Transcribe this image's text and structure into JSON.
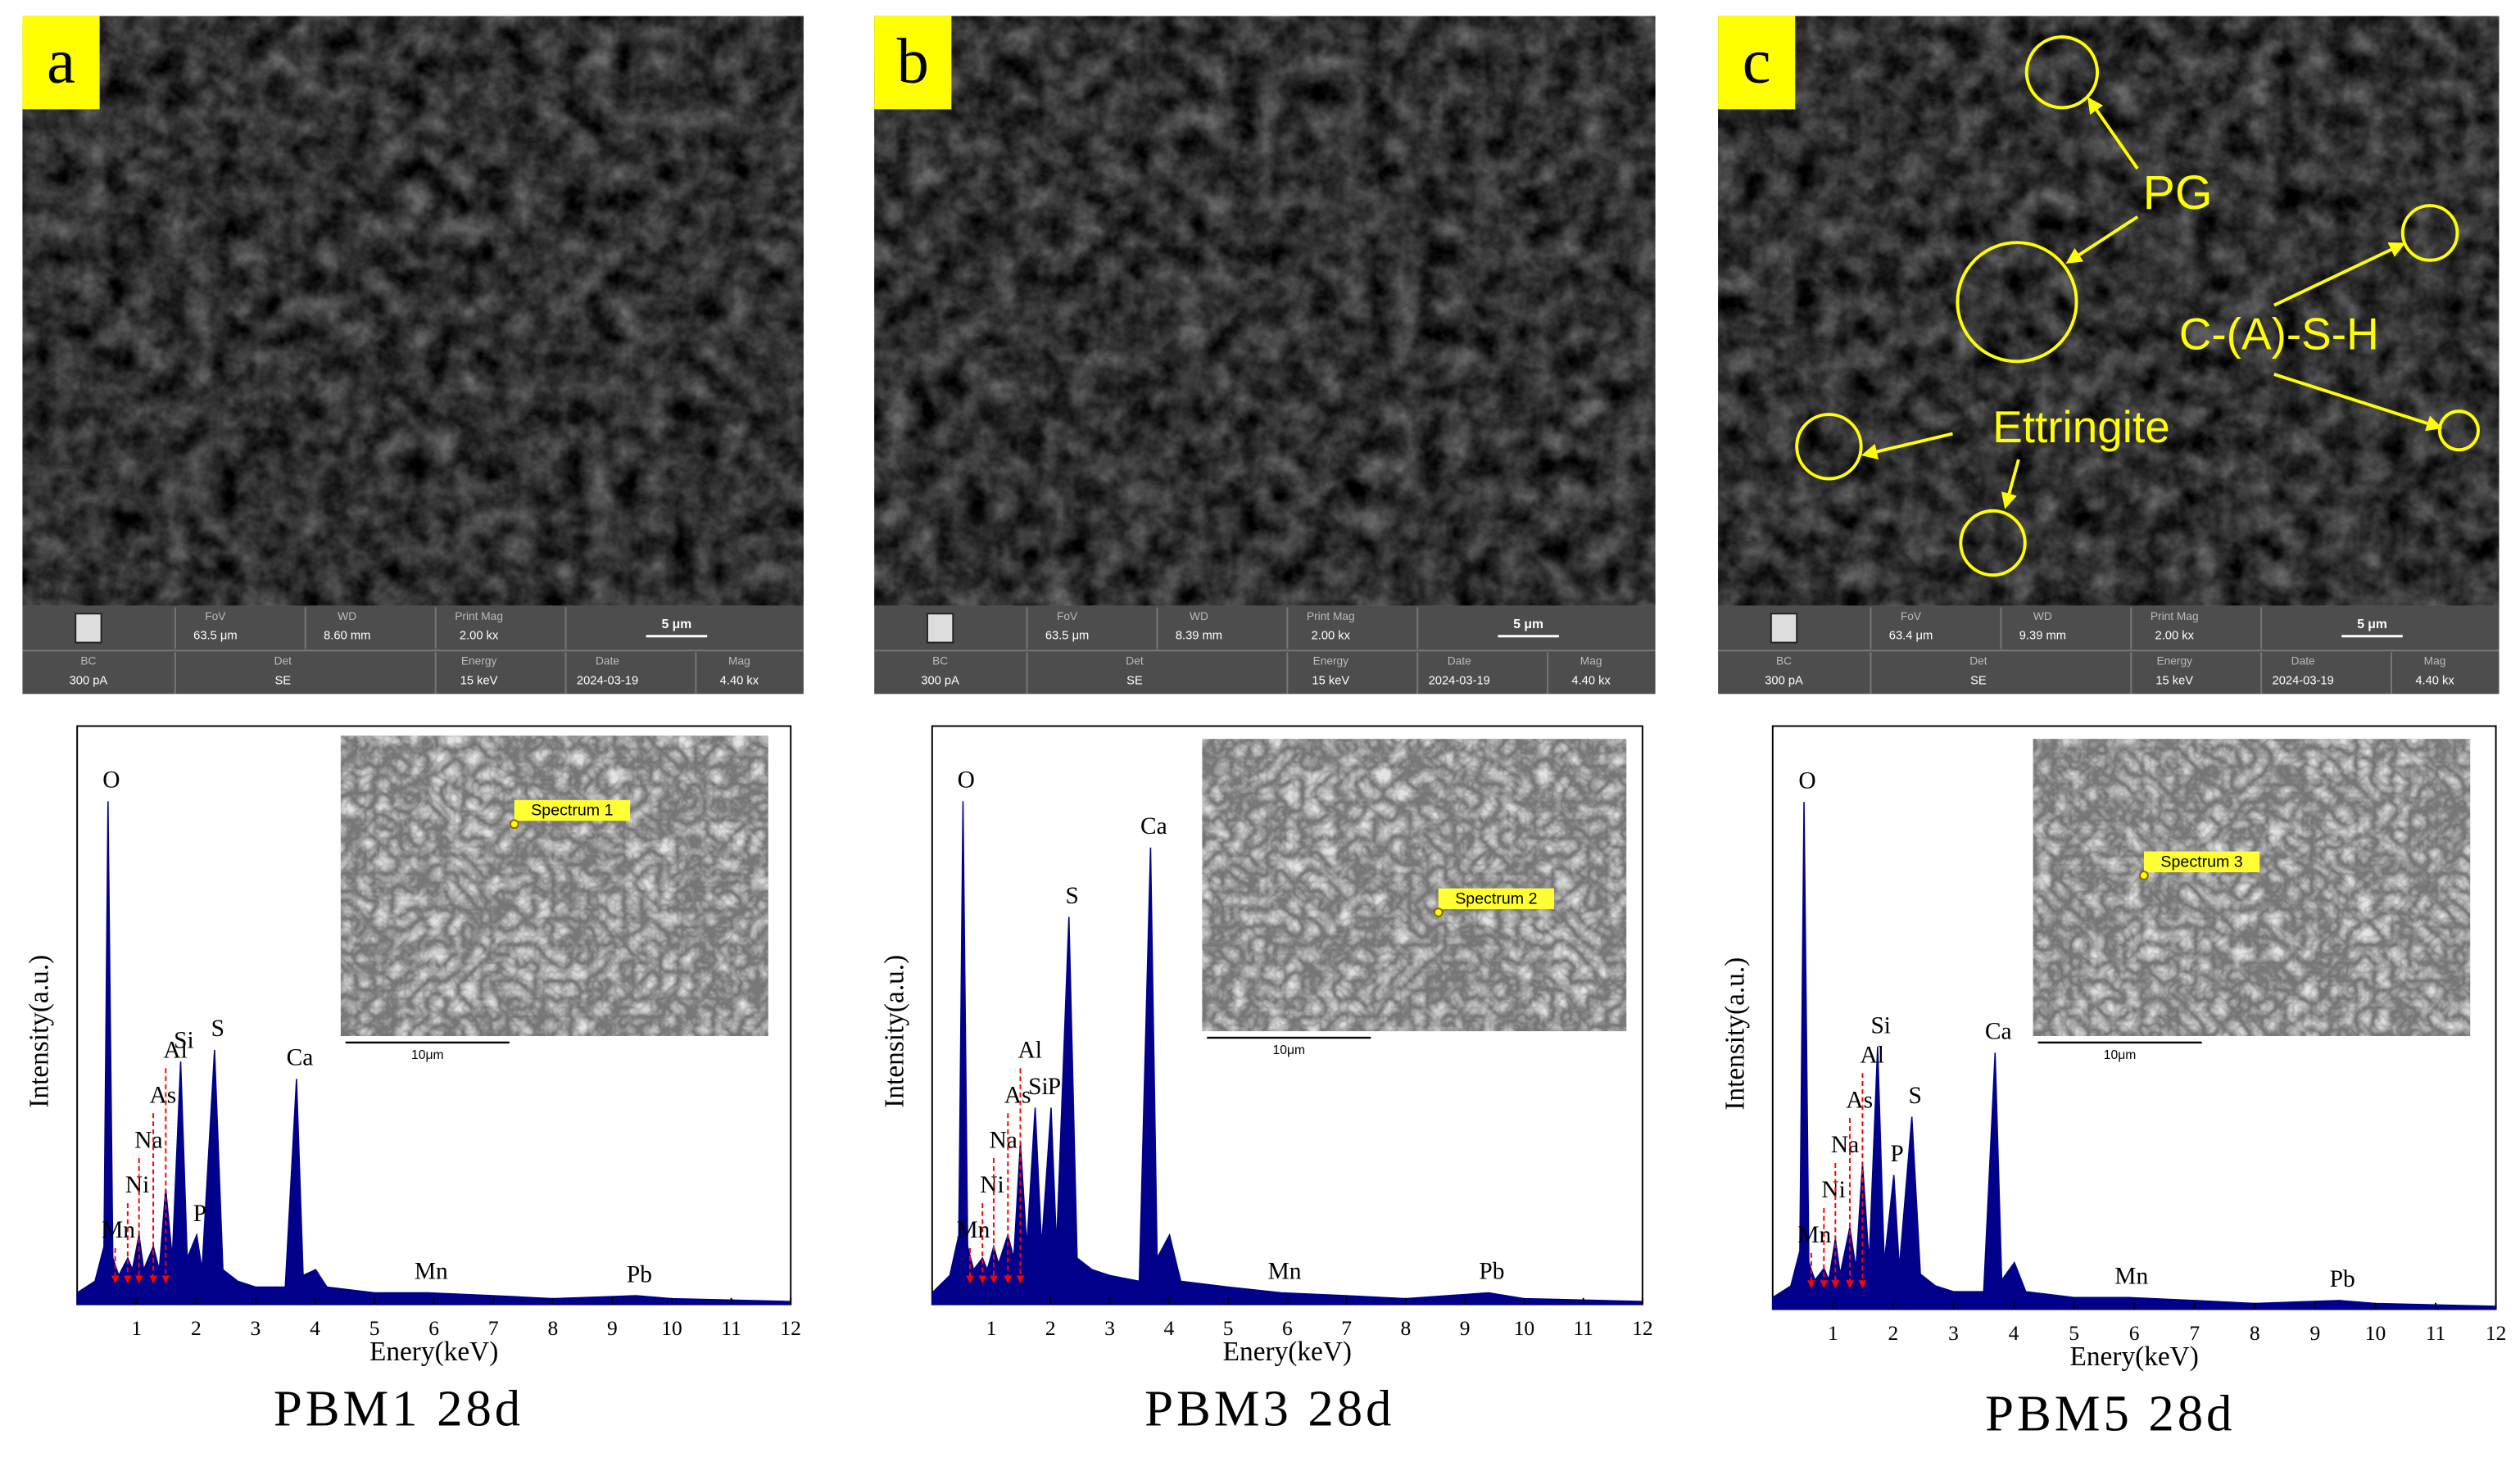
{
  "sem_images": [
    {
      "label": "a",
      "info": [
        {
          "name": "FoV",
          "value": "63.5 μm"
        },
        {
          "name": "WD",
          "value": "8.60 mm"
        },
        {
          "name": "Print Mag",
          "value": "2.00 kx"
        },
        {
          "name": "BC",
          "value": "300 pA"
        },
        {
          "name": "Det",
          "value": "SE"
        },
        {
          "name": "Energy",
          "value": "15 keV"
        },
        {
          "name": "Date",
          "value": "2024-03-19"
        },
        {
          "name": "Mag",
          "value": "4.40 kx"
        }
      ],
      "scale": "5 μm"
    },
    {
      "label": "b",
      "info": [
        {
          "name": "FoV",
          "value": "63.5 μm"
        },
        {
          "name": "WD",
          "value": "8.39 mm"
        },
        {
          "name": "Print Mag",
          "value": "2.00 kx"
        },
        {
          "name": "BC",
          "value": "300 pA"
        },
        {
          "name": "Det",
          "value": "SE"
        },
        {
          "name": "Energy",
          "value": "15 keV"
        },
        {
          "name": "Date",
          "value": "2024-03-19"
        },
        {
          "name": "Mag",
          "value": "4.40 kx"
        }
      ],
      "scale": "5 μm"
    },
    {
      "label": "c",
      "info": [
        {
          "name": "FoV",
          "value": "63.4 μm"
        },
        {
          "name": "WD",
          "value": "9.39 mm"
        },
        {
          "name": "Print Mag",
          "value": "2.00 kx"
        },
        {
          "name": "BC",
          "value": "300 pA"
        },
        {
          "name": "Det",
          "value": "SE"
        },
        {
          "name": "Energy",
          "value": "15 keV"
        },
        {
          "name": "Date",
          "value": "2024-03-19"
        },
        {
          "name": "Mag",
          "value": "4.40 kx"
        }
      ],
      "scale": "5 μm",
      "annotations": [
        "PG",
        "C-(A)-S-H",
        "Ettringite"
      ]
    }
  ],
  "chart_data": [
    {
      "type": "area",
      "title": "PBM1 28d",
      "x_label": "Enery(keV)",
      "y_label": "Intensity(a.u.)",
      "color": "#00008b",
      "xlim": [
        0,
        12
      ],
      "ylim": [
        0,
        100
      ],
      "xticks": [
        1,
        2,
        3,
        4,
        5,
        6,
        7,
        8,
        9,
        10,
        11,
        12
      ],
      "inset_label": "Spectrum 1",
      "inset_scale": "10μm",
      "x": [
        0,
        0.3,
        0.45,
        0.52,
        0.6,
        0.7,
        0.85,
        0.93,
        1.04,
        1.12,
        1.28,
        1.38,
        1.49,
        1.6,
        1.74,
        1.85,
        2.01,
        2.1,
        2.31,
        2.45,
        2.7,
        3.0,
        3.5,
        3.69,
        3.8,
        4.01,
        4.2,
        5.0,
        5.9,
        7.0,
        8.0,
        9.4,
        10.0,
        12.0
      ],
      "values": [
        2,
        4,
        10,
        87,
        8,
        5,
        8,
        6,
        12,
        6,
        10,
        6,
        20,
        8,
        42,
        8,
        12,
        6,
        44,
        6,
        4,
        3,
        3,
        39,
        5,
        6,
        3,
        2,
        2,
        1.5,
        1,
        1.5,
        1,
        0.5
      ],
      "annotations": [
        {
          "text": "O",
          "x": 0.52
        },
        {
          "text": "Mn",
          "x": 0.64,
          "arrow": true
        },
        {
          "text": "Ni",
          "x": 0.85,
          "arrow": true
        },
        {
          "text": "Na",
          "x": 1.04,
          "arrow": true
        },
        {
          "text": "As",
          "x": 1.28,
          "arrow": true
        },
        {
          "text": "Al",
          "x": 1.49,
          "arrow": true
        },
        {
          "text": "Si",
          "x": 1.74
        },
        {
          "text": "P",
          "x": 2.01
        },
        {
          "text": "S",
          "x": 2.31
        },
        {
          "text": "Ca",
          "x": 3.69
        },
        {
          "text": "Mn",
          "x": 5.9
        },
        {
          "text": "Pb",
          "x": 9.4
        }
      ]
    },
    {
      "type": "area",
      "title": "PBM3 28d",
      "x_label": "Enery(keV)",
      "y_label": "Intensity(a.u.)",
      "color": "#00008b",
      "xlim": [
        0,
        12
      ],
      "ylim": [
        0,
        100
      ],
      "xticks": [
        1,
        2,
        3,
        4,
        5,
        6,
        7,
        8,
        9,
        10,
        11,
        12
      ],
      "inset_label": "Spectrum 2",
      "inset_scale": "10μm",
      "x": [
        0,
        0.3,
        0.45,
        0.52,
        0.6,
        0.7,
        0.85,
        0.93,
        1.04,
        1.12,
        1.28,
        1.38,
        1.49,
        1.6,
        1.74,
        1.85,
        2.01,
        2.1,
        2.31,
        2.45,
        2.7,
        3.0,
        3.5,
        3.69,
        3.8,
        4.01,
        4.2,
        5.0,
        5.9,
        7.0,
        8.0,
        9.4,
        10.0,
        12.0
      ],
      "values": [
        2,
        5,
        12,
        87,
        10,
        6,
        8,
        6,
        10,
        7,
        12,
        8,
        28,
        10,
        34,
        10,
        34,
        10,
        67,
        8,
        6,
        5,
        4,
        79,
        8,
        12,
        4,
        3,
        2,
        1.5,
        1,
        2,
        1,
        0.5
      ],
      "annotations": [
        {
          "text": "O",
          "x": 0.52
        },
        {
          "text": "Mn",
          "x": 0.64,
          "arrow": true
        },
        {
          "text": "Ni",
          "x": 0.85,
          "arrow": true
        },
        {
          "text": "Na",
          "x": 1.04,
          "arrow": true
        },
        {
          "text": "As",
          "x": 1.28,
          "arrow": true
        },
        {
          "text": "Al",
          "x": 1.49,
          "arrow": true
        },
        {
          "text": "Si",
          "x": 1.74
        },
        {
          "text": "P",
          "x": 2.01
        },
        {
          "text": "S",
          "x": 2.31
        },
        {
          "text": "Ca",
          "x": 3.69
        },
        {
          "text": "Mn",
          "x": 5.9
        },
        {
          "text": "Pb",
          "x": 9.4
        }
      ]
    },
    {
      "type": "area",
      "title": "PBM5 28d",
      "x_label": "Enery(keV)",
      "y_label": "Intensity(a.u.)",
      "color": "#00008b",
      "xlim": [
        0,
        12
      ],
      "ylim": [
        0,
        100
      ],
      "xticks": [
        1,
        2,
        3,
        4,
        5,
        6,
        7,
        8,
        9,
        10,
        11,
        12
      ],
      "inset_label": "Spectrum 3",
      "inset_scale": "10μm",
      "x": [
        0,
        0.3,
        0.45,
        0.52,
        0.6,
        0.7,
        0.85,
        0.93,
        1.04,
        1.12,
        1.28,
        1.38,
        1.49,
        1.6,
        1.74,
        1.85,
        2.01,
        2.1,
        2.31,
        2.45,
        2.7,
        3.0,
        3.5,
        3.69,
        3.8,
        4.01,
        4.2,
        5.0,
        5.9,
        7.0,
        8.0,
        9.4,
        10.0,
        12.0
      ],
      "values": [
        2,
        4,
        10,
        87,
        8,
        5,
        7,
        5,
        12,
        6,
        14,
        7,
        25,
        8,
        45,
        8,
        23,
        7,
        33,
        6,
        4,
        3,
        3,
        44,
        5,
        8,
        3,
        2,
        2,
        1.5,
        1,
        1.5,
        1,
        0.5
      ],
      "annotations": [
        {
          "text": "O",
          "x": 0.52
        },
        {
          "text": "Mn",
          "x": 0.64,
          "arrow": true
        },
        {
          "text": "Ni",
          "x": 0.85,
          "arrow": true
        },
        {
          "text": "Na",
          "x": 1.04,
          "arrow": true
        },
        {
          "text": "As",
          "x": 1.28,
          "arrow": true
        },
        {
          "text": "Al",
          "x": 1.49,
          "arrow": true
        },
        {
          "text": "Si",
          "x": 1.74
        },
        {
          "text": "P",
          "x": 2.01
        },
        {
          "text": "S",
          "x": 2.31
        },
        {
          "text": "Ca",
          "x": 3.69
        },
        {
          "text": "Mn",
          "x": 5.9
        },
        {
          "text": "Pb",
          "x": 9.4
        }
      ]
    }
  ]
}
